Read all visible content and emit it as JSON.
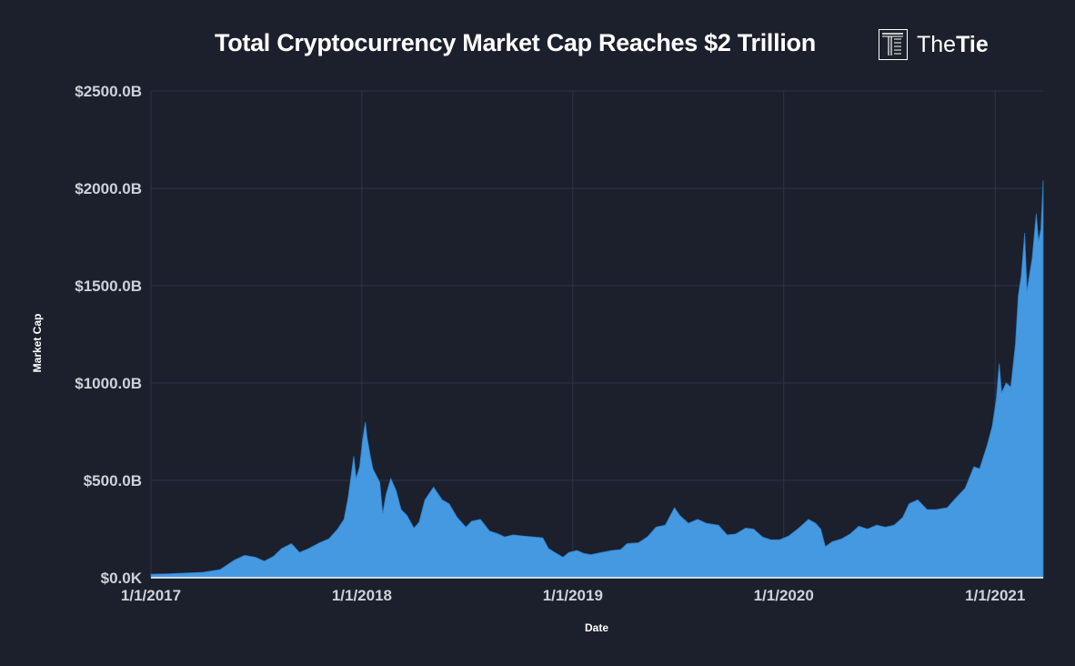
{
  "header": {
    "title": "Total Cryptocurrency Market Cap Reaches $2 Trillion",
    "logo": {
      "text_light": "The",
      "text_bold": "Tie",
      "icon": "thetie-logo-icon"
    }
  },
  "colors": {
    "background": "#1b202c",
    "area": "#4499e1",
    "grid": "#2e3546",
    "baseline": "#ffffff"
  },
  "chart_data": {
    "type": "area",
    "title": "Total Cryptocurrency Market Cap Reaches $2 Trillion",
    "xlabel": "Date",
    "ylabel": "Market Cap",
    "x_range": [
      "2017-01-01",
      "2021-03-25"
    ],
    "ylim": [
      0,
      2500
    ],
    "y_unit": "billion USD",
    "y_tick_labels": [
      "$0.0K",
      "$500.0B",
      "$1000.0B",
      "$1500.0B",
      "$2000.0B",
      "$2500.0B"
    ],
    "x_tick_labels": [
      "1/1/2017",
      "1/1/2018",
      "1/1/2019",
      "1/1/2020",
      "1/1/2021"
    ],
    "x_tick_dates": [
      "2017-01-01",
      "2018-01-01",
      "2019-01-01",
      "2020-01-01",
      "2021-01-01"
    ],
    "grid": true,
    "legend": "none",
    "series": [
      {
        "points": [
          [
            "2017-01-01",
            18
          ],
          [
            "2017-02-01",
            20
          ],
          [
            "2017-03-01",
            24
          ],
          [
            "2017-04-01",
            28
          ],
          [
            "2017-05-01",
            42
          ],
          [
            "2017-05-25",
            90
          ],
          [
            "2017-06-12",
            115
          ],
          [
            "2017-07-01",
            105
          ],
          [
            "2017-07-16",
            85
          ],
          [
            "2017-08-01",
            110
          ],
          [
            "2017-08-15",
            150
          ],
          [
            "2017-09-01",
            175
          ],
          [
            "2017-09-15",
            130
          ],
          [
            "2017-10-01",
            150
          ],
          [
            "2017-10-20",
            180
          ],
          [
            "2017-11-05",
            200
          ],
          [
            "2017-11-20",
            250
          ],
          [
            "2017-12-01",
            300
          ],
          [
            "2017-12-08",
            410
          ],
          [
            "2017-12-15",
            560
          ],
          [
            "2017-12-18",
            625
          ],
          [
            "2017-12-22",
            510
          ],
          [
            "2017-12-28",
            570
          ],
          [
            "2018-01-02",
            700
          ],
          [
            "2018-01-07",
            800
          ],
          [
            "2018-01-10",
            720
          ],
          [
            "2018-01-16",
            620
          ],
          [
            "2018-01-20",
            560
          ],
          [
            "2018-02-01",
            490
          ],
          [
            "2018-02-06",
            330
          ],
          [
            "2018-02-12",
            430
          ],
          [
            "2018-02-20",
            510
          ],
          [
            "2018-03-01",
            450
          ],
          [
            "2018-03-10",
            350
          ],
          [
            "2018-03-20",
            320
          ],
          [
            "2018-04-01",
            255
          ],
          [
            "2018-04-10",
            285
          ],
          [
            "2018-04-20",
            400
          ],
          [
            "2018-05-05",
            465
          ],
          [
            "2018-05-20",
            400
          ],
          [
            "2018-06-01",
            380
          ],
          [
            "2018-06-15",
            310
          ],
          [
            "2018-06-30",
            260
          ],
          [
            "2018-07-10",
            290
          ],
          [
            "2018-07-25",
            300
          ],
          [
            "2018-08-10",
            240
          ],
          [
            "2018-08-25",
            225
          ],
          [
            "2018-09-05",
            210
          ],
          [
            "2018-09-20",
            220
          ],
          [
            "2018-10-05",
            215
          ],
          [
            "2018-10-25",
            210
          ],
          [
            "2018-11-10",
            205
          ],
          [
            "2018-11-20",
            150
          ],
          [
            "2018-12-01",
            130
          ],
          [
            "2018-12-15",
            105
          ],
          [
            "2018-12-25",
            130
          ],
          [
            "2019-01-08",
            140
          ],
          [
            "2019-01-20",
            125
          ],
          [
            "2019-02-01",
            118
          ],
          [
            "2019-02-20",
            130
          ],
          [
            "2019-03-10",
            140
          ],
          [
            "2019-03-25",
            145
          ],
          [
            "2019-04-05",
            175
          ],
          [
            "2019-04-25",
            180
          ],
          [
            "2019-05-10",
            210
          ],
          [
            "2019-05-25",
            260
          ],
          [
            "2019-06-10",
            270
          ],
          [
            "2019-06-26",
            360
          ],
          [
            "2019-07-05",
            320
          ],
          [
            "2019-07-20",
            280
          ],
          [
            "2019-08-05",
            300
          ],
          [
            "2019-08-20",
            280
          ],
          [
            "2019-09-10",
            270
          ],
          [
            "2019-09-25",
            220
          ],
          [
            "2019-10-10",
            225
          ],
          [
            "2019-10-27",
            255
          ],
          [
            "2019-11-10",
            250
          ],
          [
            "2019-11-25",
            210
          ],
          [
            "2019-12-10",
            195
          ],
          [
            "2019-12-25",
            195
          ],
          [
            "2020-01-10",
            215
          ],
          [
            "2020-01-25",
            250
          ],
          [
            "2020-02-13",
            300
          ],
          [
            "2020-02-25",
            280
          ],
          [
            "2020-03-05",
            250
          ],
          [
            "2020-03-13",
            160
          ],
          [
            "2020-03-25",
            185
          ],
          [
            "2020-04-10",
            200
          ],
          [
            "2020-04-25",
            225
          ],
          [
            "2020-05-10",
            265
          ],
          [
            "2020-05-25",
            250
          ],
          [
            "2020-06-10",
            270
          ],
          [
            "2020-06-25",
            260
          ],
          [
            "2020-07-10",
            270
          ],
          [
            "2020-07-25",
            310
          ],
          [
            "2020-08-05",
            380
          ],
          [
            "2020-08-20",
            400
          ],
          [
            "2020-09-05",
            350
          ],
          [
            "2020-09-20",
            350
          ],
          [
            "2020-10-10",
            360
          ],
          [
            "2020-10-25",
            410
          ],
          [
            "2020-11-10",
            460
          ],
          [
            "2020-11-25",
            570
          ],
          [
            "2020-12-05",
            560
          ],
          [
            "2020-12-18",
            680
          ],
          [
            "2020-12-27",
            780
          ],
          [
            "2021-01-03",
            920
          ],
          [
            "2021-01-08",
            1100
          ],
          [
            "2021-01-12",
            950
          ],
          [
            "2021-01-20",
            1000
          ],
          [
            "2021-01-28",
            980
          ],
          [
            "2021-02-05",
            1200
          ],
          [
            "2021-02-10",
            1450
          ],
          [
            "2021-02-15",
            1550
          ],
          [
            "2021-02-21",
            1770
          ],
          [
            "2021-02-25",
            1470
          ],
          [
            "2021-03-01",
            1550
          ],
          [
            "2021-03-06",
            1640
          ],
          [
            "2021-03-13",
            1870
          ],
          [
            "2021-03-17",
            1730
          ],
          [
            "2021-03-21",
            1790
          ],
          [
            "2021-03-25",
            2040
          ]
        ]
      }
    ]
  }
}
